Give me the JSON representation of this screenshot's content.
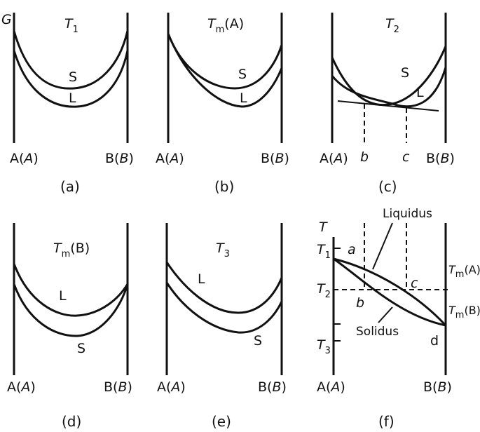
{
  "g_axis": "G",
  "t_axis": "T",
  "panels": {
    "a": {
      "temp": "T",
      "temp_sub": "1",
      "upper": "S",
      "lower": "L",
      "left": "A(",
      "left_i": "A",
      "right": "B(",
      "right_i": "B",
      "caption": "(a)"
    },
    "b": {
      "temp": "T",
      "temp_sub": "m",
      "temp_tail": "(A)",
      "upper": "S",
      "lower": "L",
      "left": "A(",
      "left_i": "A",
      "right": "B(",
      "right_i": "B",
      "caption": "(b)"
    },
    "c": {
      "temp": "T",
      "temp_sub": "2",
      "s": "S",
      "l": "L",
      "b": "b",
      "c": "c",
      "left": "A(",
      "left_i": "A",
      "right": "B(",
      "right_i": "B",
      "caption": "(c)"
    },
    "d": {
      "temp": "T",
      "temp_sub": "m",
      "temp_tail": "(B)",
      "upper": "L",
      "lower": "S",
      "left": "A(",
      "left_i": "A",
      "right": "B(",
      "right_i": "B",
      "caption": "(d)"
    },
    "e": {
      "temp": "T",
      "temp_sub": "3",
      "upper": "L",
      "lower": "S",
      "left": "A(",
      "left_i": "A",
      "right": "B(",
      "right_i": "B",
      "caption": "(e)"
    },
    "f": {
      "t1": "T",
      "t1_sub": "1",
      "t2": "T",
      "t2_sub": "2",
      "t3": "T",
      "t3_sub": "3",
      "a": "a",
      "b": "b",
      "c": "c",
      "d": "d",
      "liquidus": "Liquidus",
      "solidus": "Solidus",
      "tma": "T",
      "tma_sub": "m",
      "tma_tail": "(A)",
      "tmb": "T",
      "tmb_sub": "m",
      "tmb_tail": "(B)",
      "left": "A(",
      "left_i": "A",
      "right": "B(",
      "right_i": "B",
      "caption": "(f)"
    }
  },
  "close_paren": ")"
}
